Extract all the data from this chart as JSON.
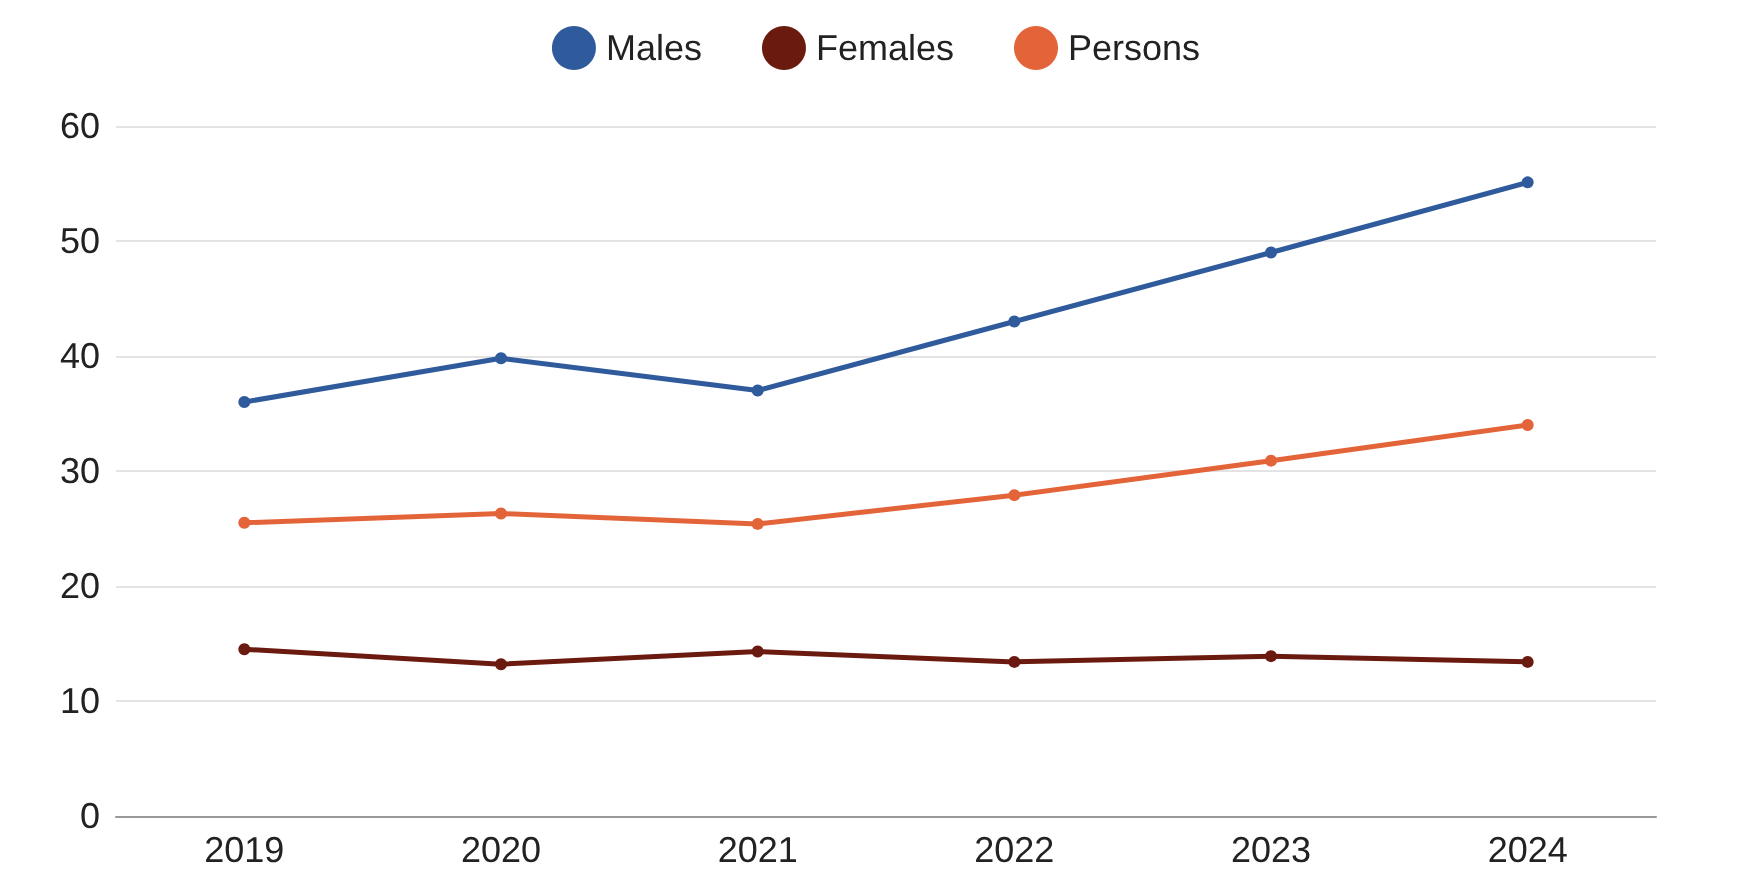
{
  "chart_data": {
    "type": "line",
    "categories": [
      "2019",
      "2020",
      "2021",
      "2022",
      "2023",
      "2024"
    ],
    "series": [
      {
        "name": "Males",
        "color": "#2f5b9c",
        "values": [
          36,
          39.8,
          37,
          43,
          49,
          55.1
        ]
      },
      {
        "name": "Females",
        "color": "#6b1a10",
        "values": [
          14.5,
          13.2,
          14.3,
          13.4,
          13.9,
          13.4
        ]
      },
      {
        "name": "Persons",
        "color": "#e4643a",
        "values": [
          25.5,
          26.3,
          25.4,
          27.9,
          30.9,
          34
        ]
      }
    ],
    "ylim": [
      0,
      60
    ],
    "yticks": [
      0,
      10,
      20,
      30,
      40,
      50,
      60
    ],
    "grid": "y",
    "legend": "top",
    "marker": "circle",
    "line_style": "solid"
  }
}
